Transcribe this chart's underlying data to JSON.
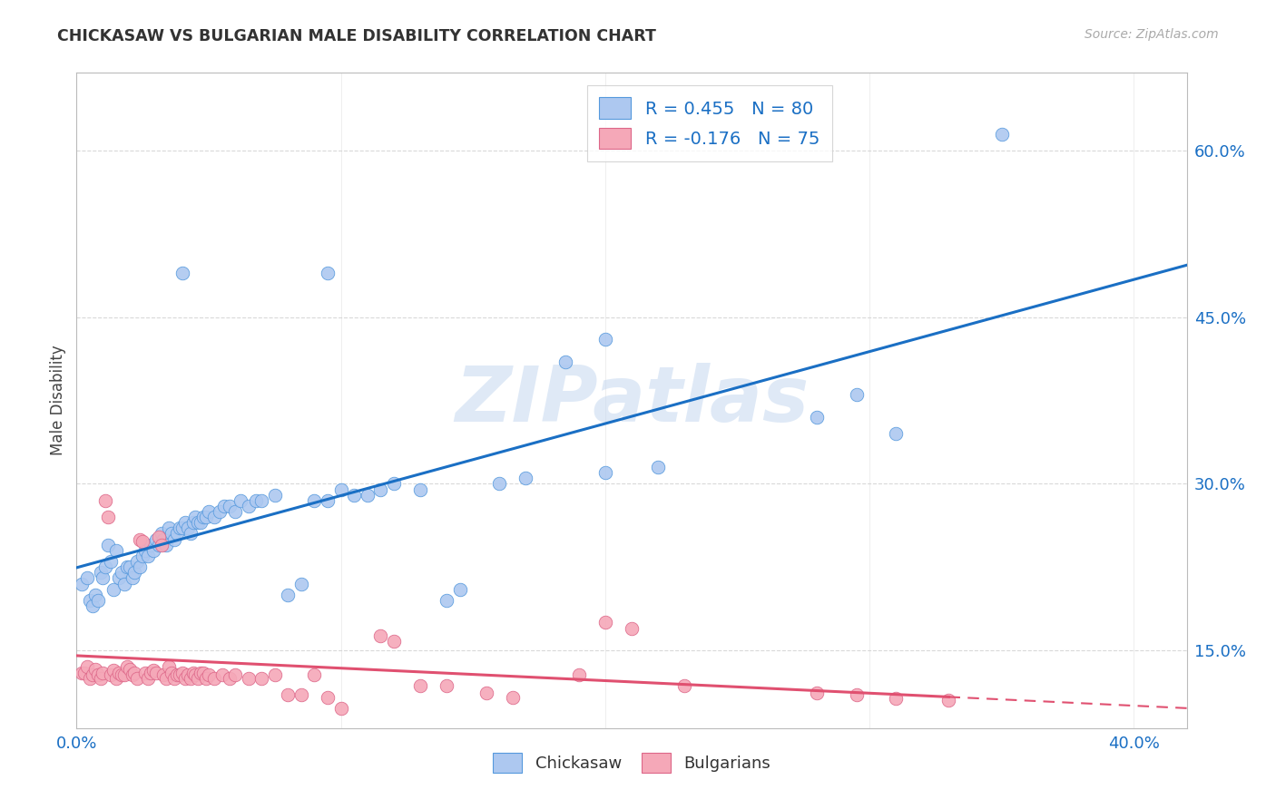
{
  "title": "CHICKASAW VS BULGARIAN MALE DISABILITY CORRELATION CHART",
  "source": "Source: ZipAtlas.com",
  "ylabel": "Male Disability",
  "y_ticks": [
    0.15,
    0.3,
    0.45,
    0.6
  ],
  "y_tick_labels": [
    "15.0%",
    "30.0%",
    "45.0%",
    "60.0%"
  ],
  "x_ticks": [
    0.0,
    0.1,
    0.2,
    0.3,
    0.4
  ],
  "x_tick_labels": [
    "0.0%",
    "",
    "",
    "",
    "40.0%"
  ],
  "x_range": [
    0.0,
    0.42
  ],
  "y_range": [
    0.08,
    0.67
  ],
  "chickasaw_R": 0.455,
  "chickasaw_N": 80,
  "bulgarian_R": -0.176,
  "bulgarian_N": 75,
  "chickasaw_color": "#adc8f0",
  "bulgarian_color": "#f5a8b8",
  "chickasaw_edge_color": "#5599dd",
  "bulgarian_edge_color": "#dd6688",
  "chickasaw_line_color": "#1a6fc4",
  "bulgarian_line_color": "#e05070",
  "chickasaw_scatter": [
    [
      0.002,
      0.21
    ],
    [
      0.004,
      0.215
    ],
    [
      0.005,
      0.195
    ],
    [
      0.006,
      0.19
    ],
    [
      0.007,
      0.2
    ],
    [
      0.008,
      0.195
    ],
    [
      0.009,
      0.22
    ],
    [
      0.01,
      0.215
    ],
    [
      0.011,
      0.225
    ],
    [
      0.012,
      0.245
    ],
    [
      0.013,
      0.23
    ],
    [
      0.014,
      0.205
    ],
    [
      0.015,
      0.24
    ],
    [
      0.016,
      0.215
    ],
    [
      0.017,
      0.22
    ],
    [
      0.018,
      0.21
    ],
    [
      0.019,
      0.225
    ],
    [
      0.02,
      0.225
    ],
    [
      0.021,
      0.215
    ],
    [
      0.022,
      0.22
    ],
    [
      0.023,
      0.23
    ],
    [
      0.024,
      0.225
    ],
    [
      0.025,
      0.235
    ],
    [
      0.026,
      0.24
    ],
    [
      0.027,
      0.235
    ],
    [
      0.028,
      0.245
    ],
    [
      0.029,
      0.24
    ],
    [
      0.03,
      0.25
    ],
    [
      0.031,
      0.245
    ],
    [
      0.032,
      0.255
    ],
    [
      0.033,
      0.25
    ],
    [
      0.034,
      0.245
    ],
    [
      0.035,
      0.26
    ],
    [
      0.036,
      0.255
    ],
    [
      0.037,
      0.25
    ],
    [
      0.038,
      0.255
    ],
    [
      0.039,
      0.26
    ],
    [
      0.04,
      0.26
    ],
    [
      0.041,
      0.265
    ],
    [
      0.042,
      0.26
    ],
    [
      0.043,
      0.255
    ],
    [
      0.044,
      0.265
    ],
    [
      0.045,
      0.27
    ],
    [
      0.046,
      0.265
    ],
    [
      0.047,
      0.265
    ],
    [
      0.048,
      0.27
    ],
    [
      0.049,
      0.27
    ],
    [
      0.05,
      0.275
    ],
    [
      0.052,
      0.27
    ],
    [
      0.054,
      0.275
    ],
    [
      0.056,
      0.28
    ],
    [
      0.058,
      0.28
    ],
    [
      0.06,
      0.275
    ],
    [
      0.062,
      0.285
    ],
    [
      0.065,
      0.28
    ],
    [
      0.068,
      0.285
    ],
    [
      0.07,
      0.285
    ],
    [
      0.075,
      0.29
    ],
    [
      0.08,
      0.2
    ],
    [
      0.085,
      0.21
    ],
    [
      0.09,
      0.285
    ],
    [
      0.095,
      0.285
    ],
    [
      0.1,
      0.295
    ],
    [
      0.105,
      0.29
    ],
    [
      0.11,
      0.29
    ],
    [
      0.115,
      0.295
    ],
    [
      0.12,
      0.3
    ],
    [
      0.13,
      0.295
    ],
    [
      0.14,
      0.195
    ],
    [
      0.145,
      0.205
    ],
    [
      0.16,
      0.3
    ],
    [
      0.17,
      0.305
    ],
    [
      0.2,
      0.31
    ],
    [
      0.22,
      0.315
    ],
    [
      0.04,
      0.49
    ],
    [
      0.095,
      0.49
    ],
    [
      0.185,
      0.41
    ],
    [
      0.2,
      0.43
    ],
    [
      0.28,
      0.36
    ],
    [
      0.295,
      0.38
    ],
    [
      0.31,
      0.345
    ],
    [
      0.35,
      0.615
    ]
  ],
  "bulgarian_scatter": [
    [
      0.002,
      0.13
    ],
    [
      0.003,
      0.13
    ],
    [
      0.004,
      0.135
    ],
    [
      0.005,
      0.125
    ],
    [
      0.006,
      0.128
    ],
    [
      0.007,
      0.133
    ],
    [
      0.008,
      0.128
    ],
    [
      0.009,
      0.125
    ],
    [
      0.01,
      0.13
    ],
    [
      0.011,
      0.285
    ],
    [
      0.012,
      0.27
    ],
    [
      0.013,
      0.128
    ],
    [
      0.014,
      0.132
    ],
    [
      0.015,
      0.125
    ],
    [
      0.016,
      0.13
    ],
    [
      0.017,
      0.128
    ],
    [
      0.018,
      0.128
    ],
    [
      0.019,
      0.135
    ],
    [
      0.02,
      0.133
    ],
    [
      0.021,
      0.128
    ],
    [
      0.022,
      0.13
    ],
    [
      0.023,
      0.125
    ],
    [
      0.024,
      0.25
    ],
    [
      0.025,
      0.248
    ],
    [
      0.026,
      0.13
    ],
    [
      0.027,
      0.125
    ],
    [
      0.028,
      0.13
    ],
    [
      0.029,
      0.132
    ],
    [
      0.03,
      0.13
    ],
    [
      0.031,
      0.252
    ],
    [
      0.032,
      0.245
    ],
    [
      0.033,
      0.128
    ],
    [
      0.034,
      0.125
    ],
    [
      0.035,
      0.135
    ],
    [
      0.036,
      0.13
    ],
    [
      0.037,
      0.125
    ],
    [
      0.038,
      0.128
    ],
    [
      0.039,
      0.128
    ],
    [
      0.04,
      0.13
    ],
    [
      0.041,
      0.125
    ],
    [
      0.042,
      0.128
    ],
    [
      0.043,
      0.125
    ],
    [
      0.044,
      0.13
    ],
    [
      0.045,
      0.128
    ],
    [
      0.046,
      0.125
    ],
    [
      0.047,
      0.13
    ],
    [
      0.048,
      0.13
    ],
    [
      0.049,
      0.125
    ],
    [
      0.05,
      0.128
    ],
    [
      0.052,
      0.125
    ],
    [
      0.055,
      0.128
    ],
    [
      0.058,
      0.125
    ],
    [
      0.06,
      0.128
    ],
    [
      0.065,
      0.125
    ],
    [
      0.07,
      0.125
    ],
    [
      0.075,
      0.128
    ],
    [
      0.08,
      0.11
    ],
    [
      0.085,
      0.11
    ],
    [
      0.09,
      0.128
    ],
    [
      0.095,
      0.108
    ],
    [
      0.1,
      0.098
    ],
    [
      0.115,
      0.163
    ],
    [
      0.12,
      0.158
    ],
    [
      0.13,
      0.118
    ],
    [
      0.14,
      0.118
    ],
    [
      0.155,
      0.112
    ],
    [
      0.165,
      0.108
    ],
    [
      0.19,
      0.128
    ],
    [
      0.2,
      0.175
    ],
    [
      0.21,
      0.17
    ],
    [
      0.23,
      0.118
    ],
    [
      0.28,
      0.112
    ],
    [
      0.295,
      0.11
    ],
    [
      0.31,
      0.107
    ],
    [
      0.33,
      0.105
    ]
  ],
  "watermark": "ZIPatlas",
  "background_color": "#ffffff",
  "grid_color": "#d0d0d0"
}
